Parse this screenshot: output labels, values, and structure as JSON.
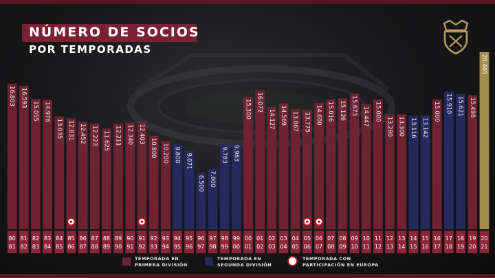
{
  "header": {
    "title_line1": "NÚMERO DE SOCIOS",
    "title_line2": "POR TEMPORADAS"
  },
  "colors": {
    "primera": "#6e2331",
    "segunda": "#242a5e",
    "current": "#a38d4f",
    "label_box": "#8a2638",
    "europe_badge": "#b01a1a"
  },
  "icons": {
    "crest": "osasuna-crest-icon",
    "europe": "uefa-badge-icon"
  },
  "legend": {
    "primera": {
      "line1": "TEMPORADA EN",
      "line2": "PRIMERA DIVISIÓN"
    },
    "segunda": {
      "line1": "TEMPORADA EN",
      "line2": "SEGUNDA DIVISIÓN"
    },
    "europa": {
      "line1": "TEMPORADA CON",
      "line2": "PARTICIPACIÓN EN EUROPA"
    }
  },
  "chart_data": {
    "type": "bar",
    "title": "NÚMERO DE SOCIOS POR TEMPORADAS",
    "value_axis": "none",
    "categories": [
      [
        "80",
        "81"
      ],
      [
        "81",
        "82"
      ],
      [
        "82",
        "83"
      ],
      [
        "83",
        "84"
      ],
      [
        "84",
        "85"
      ],
      [
        "85",
        "86"
      ],
      [
        "86",
        "87"
      ],
      [
        "87",
        "88"
      ],
      [
        "88",
        "89"
      ],
      [
        "89",
        "90"
      ],
      [
        "90",
        "91"
      ],
      [
        "91",
        "92"
      ],
      [
        "92",
        "93"
      ],
      [
        "93",
        "94"
      ],
      [
        "94",
        "95"
      ],
      [
        "95",
        "96"
      ],
      [
        "96",
        "97"
      ],
      [
        "97",
        "98"
      ],
      [
        "98",
        "99"
      ],
      [
        "99",
        "00"
      ],
      [
        "00",
        "01"
      ],
      [
        "01",
        "02"
      ],
      [
        "02",
        "03"
      ],
      [
        "03",
        "04"
      ],
      [
        "04",
        "05"
      ],
      [
        "05",
        "06"
      ],
      [
        "06",
        "07"
      ],
      [
        "07",
        "08"
      ],
      [
        "08",
        "09"
      ],
      [
        "09",
        "10"
      ],
      [
        "10",
        "11"
      ],
      [
        "11",
        "12"
      ],
      [
        "12",
        "13"
      ],
      [
        "13",
        "14"
      ],
      [
        "14",
        "15"
      ],
      [
        "15",
        "16"
      ],
      [
        "16",
        "17"
      ],
      [
        "17",
        "18"
      ],
      [
        "18",
        "19"
      ],
      [
        "19",
        "20"
      ],
      [
        "20",
        "21"
      ]
    ],
    "value_labels": [
      "16.803",
      "16.593",
      "15.055",
      "14.978",
      "13.035",
      "12.831",
      "12.452",
      "12.223",
      "11.625",
      "12.211",
      "12.340",
      "12.403",
      "10.800",
      "10.200",
      "9.800",
      "9.071",
      "6.500",
      "7.000",
      "9.783",
      "9.983",
      "15.300",
      "16.072",
      "14.127",
      "14.569",
      "13.867",
      "13.775",
      "14.600",
      "15.016",
      "15.126",
      "15.673",
      "14.447",
      "15.000",
      "13.280",
      "13.300",
      "13.116",
      "13.142",
      "15.000",
      "15.910",
      "15.621",
      "15.498",
      "20.465"
    ],
    "values": [
      16803,
      16593,
      15055,
      14978,
      13035,
      12831,
      12452,
      12223,
      11625,
      12211,
      12340,
      12403,
      10800,
      10200,
      9800,
      9071,
      6500,
      7000,
      9783,
      9983,
      15300,
      16072,
      14127,
      14569,
      13867,
      13775,
      14600,
      15016,
      15126,
      15673,
      14447,
      15000,
      13280,
      13300,
      13116,
      13142,
      15000,
      15910,
      15621,
      15498,
      20465
    ],
    "division": [
      "primera",
      "primera",
      "primera",
      "primera",
      "primera",
      "primera",
      "primera",
      "primera",
      "primera",
      "primera",
      "primera",
      "primera",
      "primera",
      "primera",
      "segunda",
      "segunda",
      "segunda",
      "segunda",
      "segunda",
      "segunda",
      "primera",
      "primera",
      "primera",
      "primera",
      "primera",
      "primera",
      "primera",
      "primera",
      "primera",
      "primera",
      "primera",
      "primera",
      "primera",
      "primera",
      "segunda",
      "segunda",
      "primera",
      "segunda",
      "segunda",
      "primera",
      "current"
    ],
    "europe_seasons": [
      5,
      11,
      25,
      26
    ]
  }
}
